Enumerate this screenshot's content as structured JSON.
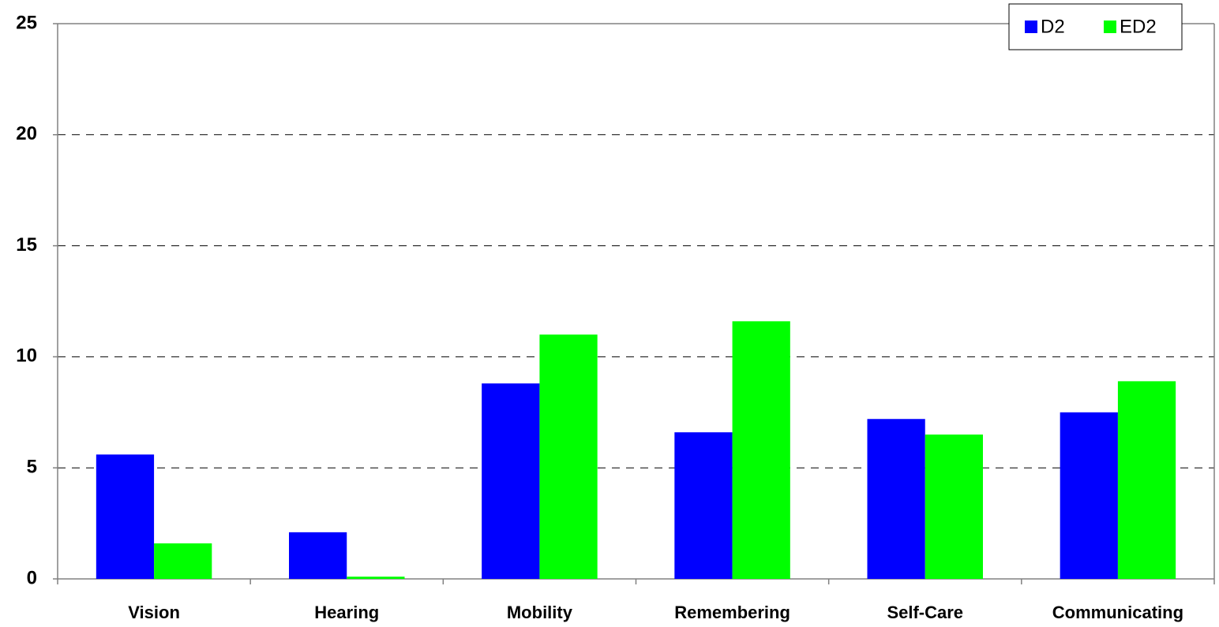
{
  "chart_data": {
    "type": "bar",
    "categories": [
      "Vision",
      "Hearing",
      "Mobility",
      "Remembering",
      "Self-Care",
      "Communicating"
    ],
    "series": [
      {
        "name": "D2",
        "color": "#0000ff",
        "values": [
          5.6,
          2.1,
          8.8,
          6.6,
          7.2,
          7.5
        ]
      },
      {
        "name": "ED2",
        "color": "#00ff00",
        "values": [
          1.6,
          0.1,
          11.0,
          11.6,
          6.5,
          8.9
        ]
      }
    ],
    "ylim": [
      0,
      25
    ],
    "yticks": [
      0,
      5,
      10,
      15,
      20,
      25
    ],
    "grid": true,
    "legend": "top-right"
  }
}
